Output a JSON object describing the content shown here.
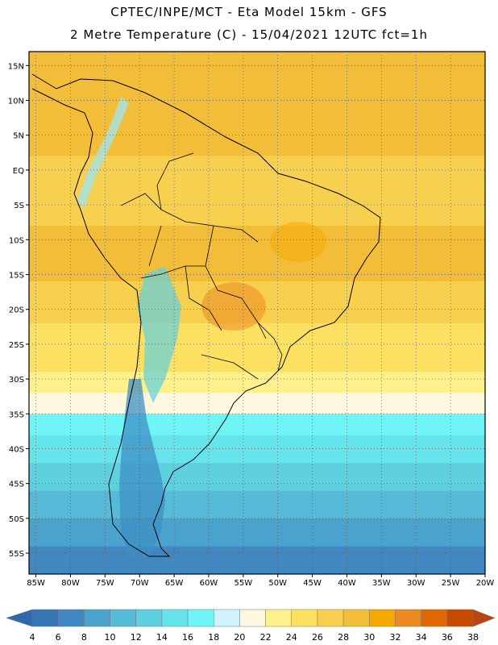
{
  "title_line1": "CPTEC/INPE/MCT -  Eta Model 15km - GFS",
  "title_line2": "2 Metre Temperature (C) - 15/04/2021 12UTC fct=1h",
  "map": {
    "region": "South America",
    "lon_range": [
      -86,
      -20
    ],
    "lat_range": [
      -58,
      17
    ],
    "lat_labels": [
      {
        "lat": 15,
        "label": "15N"
      },
      {
        "lat": 10,
        "label": "10N"
      },
      {
        "lat": 5,
        "label": "5N"
      },
      {
        "lat": 0,
        "label": "EQ"
      },
      {
        "lat": -5,
        "label": "5S"
      },
      {
        "lat": -10,
        "label": "10S"
      },
      {
        "lat": -15,
        "label": "15S"
      },
      {
        "lat": -20,
        "label": "20S"
      },
      {
        "lat": -25,
        "label": "25S"
      },
      {
        "lat": -30,
        "label": "30S"
      },
      {
        "lat": -35,
        "label": "35S"
      },
      {
        "lat": -40,
        "label": "40S"
      },
      {
        "lat": -45,
        "label": "45S"
      },
      {
        "lat": -50,
        "label": "50S"
      },
      {
        "lat": -55,
        "label": "55S"
      }
    ],
    "lon_labels": [
      {
        "lon": -85,
        "label": "85W"
      },
      {
        "lon": -80,
        "label": "80W"
      },
      {
        "lon": -75,
        "label": "75W"
      },
      {
        "lon": -70,
        "label": "70W"
      },
      {
        "lon": -65,
        "label": "65W"
      },
      {
        "lon": -60,
        "label": "60W"
      },
      {
        "lon": -55,
        "label": "55W"
      },
      {
        "lon": -50,
        "label": "50W"
      },
      {
        "lon": -45,
        "label": "45W"
      },
      {
        "lon": -40,
        "label": "40W"
      },
      {
        "lon": -35,
        "label": "35W"
      },
      {
        "lon": -30,
        "label": "30W"
      },
      {
        "lon": -25,
        "label": "25W"
      },
      {
        "lon": -20,
        "label": "20W"
      }
    ],
    "temperature_bands": [
      {
        "lat_from": 17,
        "lat_to": 2,
        "temp_c": 28
      },
      {
        "lat_from": 2,
        "lat_to": -8,
        "temp_c": 27
      },
      {
        "lat_from": -8,
        "lat_to": -16,
        "temp_c": 28
      },
      {
        "lat_from": -16,
        "lat_to": -22,
        "temp_c": 27
      },
      {
        "lat_from": -22,
        "lat_to": -26,
        "temp_c": 25
      },
      {
        "lat_from": -26,
        "lat_to": -29,
        "temp_c": 24
      },
      {
        "lat_from": -29,
        "lat_to": -32,
        "temp_c": 22
      },
      {
        "lat_from": -32,
        "lat_to": -35,
        "temp_c": 20
      },
      {
        "lat_from": -35,
        "lat_to": -38,
        "temp_c": 16
      },
      {
        "lat_from": -38,
        "lat_to": -42,
        "temp_c": 15
      },
      {
        "lat_from": -42,
        "lat_to": -46,
        "temp_c": 13
      },
      {
        "lat_from": -46,
        "lat_to": -50,
        "temp_c": 11
      },
      {
        "lat_from": -50,
        "lat_to": -54,
        "temp_c": 9
      },
      {
        "lat_from": -54,
        "lat_to": -58,
        "temp_c": 7
      }
    ]
  },
  "legend": {
    "colors": [
      "#3775b6",
      "#4187c2",
      "#4aa3cc",
      "#55bbd8",
      "#5fd0e0",
      "#66e4ec",
      "#6ff5f5",
      "#d2f3fb",
      "#fff8e0",
      "#fef08a",
      "#fce062",
      "#f8d050",
      "#f2be3a",
      "#f5a800",
      "#ec8a20",
      "#e06800",
      "#c84a00"
    ],
    "under_color": "#2f69ac",
    "over_color": "#bb4410",
    "labels": [
      "4",
      "6",
      "8",
      "10",
      "12",
      "14",
      "16",
      "18",
      "20",
      "22",
      "24",
      "26",
      "28",
      "30",
      "32",
      "34",
      "36",
      "38"
    ]
  }
}
